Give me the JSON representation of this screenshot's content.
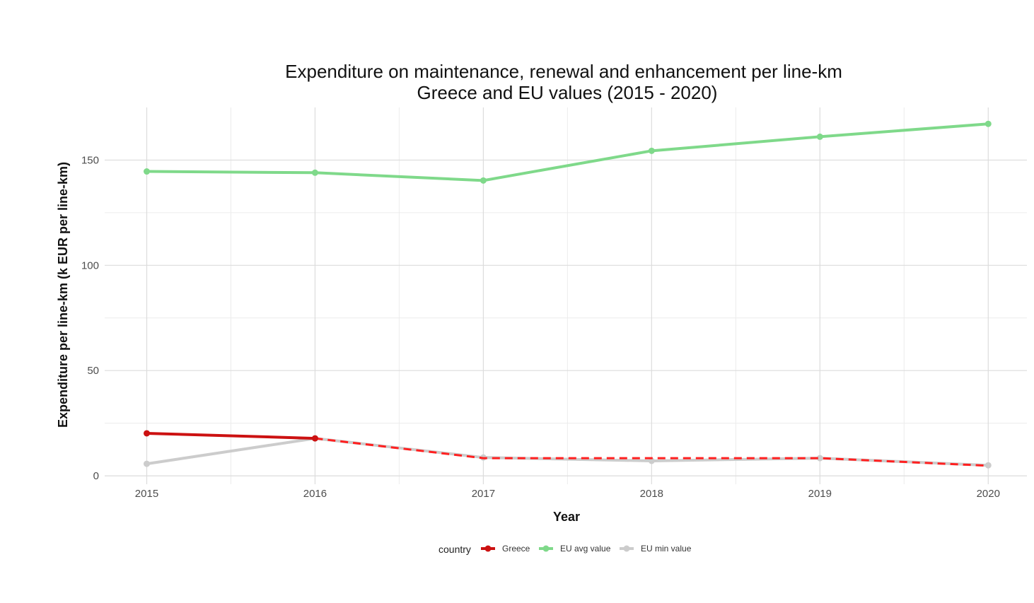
{
  "chart_data": {
    "type": "line",
    "title": "Expenditure on maintenance, renewal and enhancement per line-km",
    "subtitle": "Greece and EU values (2015 - 2020)",
    "xlabel": "Year",
    "ylabel": "Expenditure per line-km (k EUR per line-km)",
    "x": [
      2015,
      2016,
      2017,
      2018,
      2019,
      2020
    ],
    "x_ticks": [
      "2015",
      "2016",
      "2017",
      "2018",
      "2019",
      "2020"
    ],
    "y_ticks": [
      0,
      50,
      100,
      150
    ],
    "y_tick_labels": [
      "0",
      "50",
      "100",
      "150"
    ],
    "ylim": [
      -4,
      175
    ],
    "xlim": [
      2014.75,
      2020.23
    ],
    "grid": true,
    "legend": {
      "title": "country",
      "position": "bottom"
    },
    "series": [
      {
        "name": "Greece",
        "color": "#cc1111",
        "dash_color": "#ff2020",
        "values": [
          20.2,
          17.8,
          8.4,
          8.4,
          8.4,
          4.8
        ],
        "solid_until": 2016,
        "dashed_after": 2016
      },
      {
        "name": "EU avg value",
        "color": "#7fd98a",
        "values": [
          144.6,
          144.0,
          140.3,
          154.4,
          161.1,
          167.2
        ]
      },
      {
        "name": "EU min value",
        "color": "#cccccc",
        "values": [
          5.7,
          17.8,
          8.7,
          7.1,
          8.4,
          5.0
        ]
      }
    ]
  }
}
